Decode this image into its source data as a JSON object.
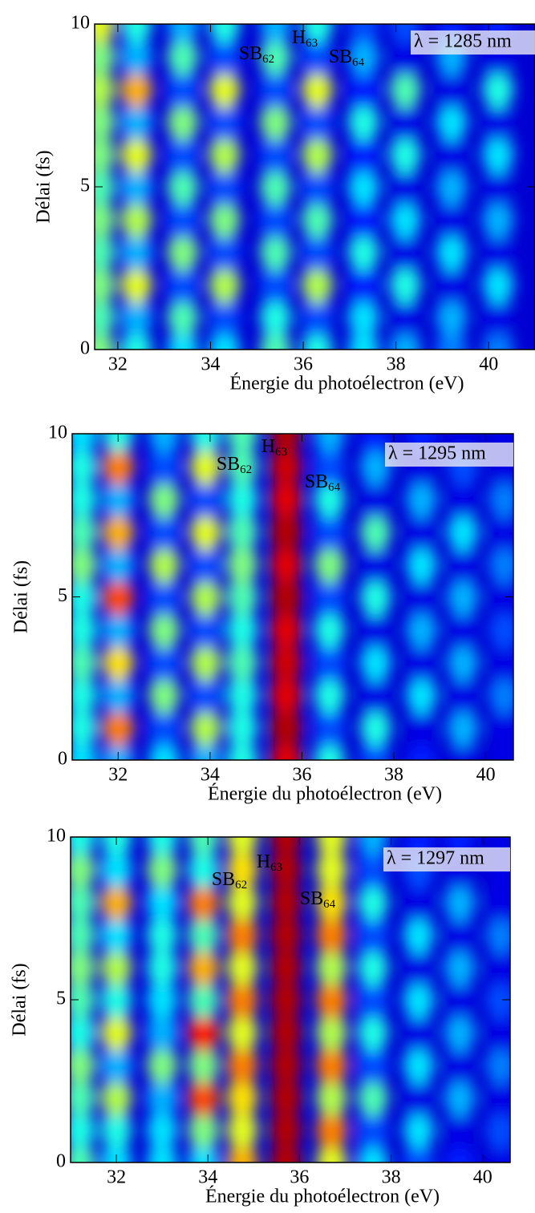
{
  "chart_data": [
    {
      "type": "heatmap",
      "xlabel": "Énergie du photoélectron (eV)",
      "ylabel": "Délai (fs)",
      "xlim": [
        31.5,
        41
      ],
      "ylim": [
        0,
        10
      ],
      "xticks": [
        32,
        34,
        36,
        38,
        40
      ],
      "yticks": [
        0,
        5,
        10
      ],
      "label": "λ = 1285 nm",
      "label_color": "#6a5acd",
      "annotations": [
        {
          "base": "SB",
          "sub": "62"
        },
        {
          "base": "H",
          "sub": "63"
        },
        {
          "base": "SB",
          "sub": "64"
        }
      ],
      "y": [
        0,
        1,
        2,
        3,
        4,
        5,
        6,
        7,
        8,
        9,
        10
      ],
      "x": [
        31.6,
        32.4,
        33.4,
        34.3,
        35.4,
        36.3,
        37.3,
        38.2,
        39.2,
        40.2
      ],
      "z": [
        [
          0.5,
          0.45,
          0.5,
          0.45,
          0.5,
          0.45,
          0.5,
          0.5,
          0.55,
          0.5,
          0.6
        ],
        [
          0.4,
          0.3,
          0.6,
          0.3,
          0.55,
          0.3,
          0.6,
          0.3,
          0.7,
          0.3,
          0.4
        ],
        [
          0.35,
          0.45,
          0.2,
          0.5,
          0.2,
          0.45,
          0.2,
          0.5,
          0.2,
          0.45,
          0.3
        ],
        [
          0.35,
          0.2,
          0.55,
          0.2,
          0.5,
          0.2,
          0.55,
          0.2,
          0.6,
          0.2,
          0.4
        ],
        [
          0.45,
          0.4,
          0.2,
          0.45,
          0.2,
          0.45,
          0.2,
          0.5,
          0.2,
          0.45,
          0.3
        ],
        [
          0.4,
          0.2,
          0.55,
          0.2,
          0.45,
          0.2,
          0.55,
          0.2,
          0.6,
          0.2,
          0.4
        ],
        [
          0.35,
          0.35,
          0.15,
          0.4,
          0.15,
          0.35,
          0.15,
          0.4,
          0.15,
          0.3,
          0.2
        ],
        [
          0.3,
          0.1,
          0.4,
          0.1,
          0.35,
          0.1,
          0.4,
          0.1,
          0.45,
          0.1,
          0.2
        ],
        [
          0.25,
          0.3,
          0.1,
          0.35,
          0.1,
          0.3,
          0.1,
          0.35,
          0.1,
          0.3,
          0.15
        ],
        [
          0.25,
          0.1,
          0.35,
          0.1,
          0.3,
          0.1,
          0.35,
          0.1,
          0.4,
          0.1,
          0.15
        ]
      ]
    },
    {
      "type": "heatmap",
      "xlabel": "Énergie du photoélectron (eV)",
      "ylabel": "Délai (fs)",
      "xlim": [
        31,
        40.6
      ],
      "ylim": [
        0,
        10
      ],
      "xticks": [
        32,
        34,
        36,
        38,
        40
      ],
      "yticks": [
        0,
        5,
        10
      ],
      "label": "λ = 1295 nm",
      "label_color": "#9b1b6e",
      "annotations": [
        {
          "base": "SB",
          "sub": "62"
        },
        {
          "base": "H",
          "sub": "63"
        },
        {
          "base": "SB",
          "sub": "64"
        }
      ],
      "y": [
        0,
        1,
        2,
        3,
        4,
        5,
        6,
        7,
        8,
        9,
        10
      ],
      "x": [
        31.2,
        32.0,
        33.0,
        33.9,
        34.7,
        35.65,
        36.6,
        37.6,
        38.6,
        39.5,
        40.4
      ],
      "z": [
        [
          0.35,
          0.4,
          0.4,
          0.45,
          0.4,
          0.4,
          0.5,
          0.45,
          0.4,
          0.4,
          0.35
        ],
        [
          0.3,
          0.75,
          0.3,
          0.65,
          0.3,
          0.8,
          0.3,
          0.7,
          0.3,
          0.75,
          0.4
        ],
        [
          0.35,
          0.2,
          0.5,
          0.2,
          0.5,
          0.2,
          0.55,
          0.2,
          0.5,
          0.2,
          0.3
        ],
        [
          0.3,
          0.55,
          0.2,
          0.55,
          0.2,
          0.55,
          0.2,
          0.6,
          0.2,
          0.6,
          0.4
        ],
        [
          0.4,
          0.4,
          0.4,
          0.45,
          0.4,
          0.45,
          0.5,
          0.45,
          0.4,
          0.45,
          0.45
        ],
        [
          0.9,
          0.95,
          0.9,
          0.92,
          0.9,
          0.95,
          0.9,
          0.95,
          0.9,
          0.92,
          0.95
        ],
        [
          0.4,
          0.2,
          0.4,
          0.2,
          0.4,
          0.2,
          0.5,
          0.2,
          0.4,
          0.2,
          0.3
        ],
        [
          0.2,
          0.4,
          0.1,
          0.35,
          0.1,
          0.4,
          0.1,
          0.45,
          0.1,
          0.3,
          0.15
        ],
        [
          0.15,
          0.1,
          0.35,
          0.1,
          0.3,
          0.1,
          0.35,
          0.1,
          0.3,
          0.1,
          0.15
        ],
        [
          0.1,
          0.3,
          0.1,
          0.3,
          0.1,
          0.3,
          0.1,
          0.35,
          0.1,
          0.2,
          0.1
        ],
        [
          0.1,
          0.1,
          0.25,
          0.1,
          0.2,
          0.1,
          0.25,
          0.1,
          0.25,
          0.1,
          0.1
        ]
      ]
    },
    {
      "type": "heatmap",
      "xlabel": "Énergie du photoélectron (eV)",
      "ylabel": "Délai (fs)",
      "xlim": [
        31,
        40.6
      ],
      "ylim": [
        0,
        10
      ],
      "xticks": [
        32,
        34,
        36,
        38,
        40
      ],
      "yticks": [
        0,
        5,
        10
      ],
      "label": "λ = 1297 nm",
      "label_color": "#9b1b6e",
      "annotations": [
        {
          "base": "SB",
          "sub": "62"
        },
        {
          "base": "H",
          "sub": "63"
        },
        {
          "base": "SB",
          "sub": "64"
        }
      ],
      "y": [
        0,
        1,
        2,
        3,
        4,
        5,
        6,
        7,
        8,
        9,
        10
      ],
      "x": [
        31.2,
        32.0,
        33.0,
        33.9,
        34.75,
        35.7,
        36.7,
        37.6,
        38.6,
        39.5,
        40.4
      ],
      "z": [
        [
          0.45,
          0.4,
          0.45,
          0.5,
          0.4,
          0.45,
          0.5,
          0.45,
          0.45,
          0.5,
          0.4
        ],
        [
          0.35,
          0.4,
          0.55,
          0.3,
          0.6,
          0.4,
          0.55,
          0.35,
          0.7,
          0.35,
          0.4
        ],
        [
          0.35,
          0.35,
          0.3,
          0.5,
          0.3,
          0.35,
          0.4,
          0.4,
          0.35,
          0.5,
          0.4
        ],
        [
          0.35,
          0.5,
          0.8,
          0.5,
          0.85,
          0.45,
          0.7,
          0.45,
          0.75,
          0.4,
          0.45
        ],
        [
          0.7,
          0.6,
          0.65,
          0.75,
          0.6,
          0.75,
          0.6,
          0.75,
          0.6,
          0.65,
          0.6
        ],
        [
          0.95,
          0.95,
          0.95,
          0.95,
          0.95,
          0.95,
          0.95,
          0.95,
          0.95,
          0.95,
          0.95
        ],
        [
          0.6,
          0.75,
          0.55,
          0.75,
          0.55,
          0.75,
          0.55,
          0.75,
          0.65,
          0.6,
          0.6
        ],
        [
          0.35,
          0.2,
          0.45,
          0.2,
          0.4,
          0.2,
          0.4,
          0.2,
          0.4,
          0.2,
          0.3
        ],
        [
          0.2,
          0.35,
          0.1,
          0.35,
          0.1,
          0.35,
          0.1,
          0.35,
          0.1,
          0.2,
          0.15
        ],
        [
          0.15,
          0.1,
          0.3,
          0.1,
          0.3,
          0.1,
          0.3,
          0.1,
          0.3,
          0.1,
          0.15
        ],
        [
          0.1,
          0.2,
          0.1,
          0.25,
          0.1,
          0.2,
          0.1,
          0.25,
          0.1,
          0.1,
          0.1
        ]
      ]
    }
  ]
}
